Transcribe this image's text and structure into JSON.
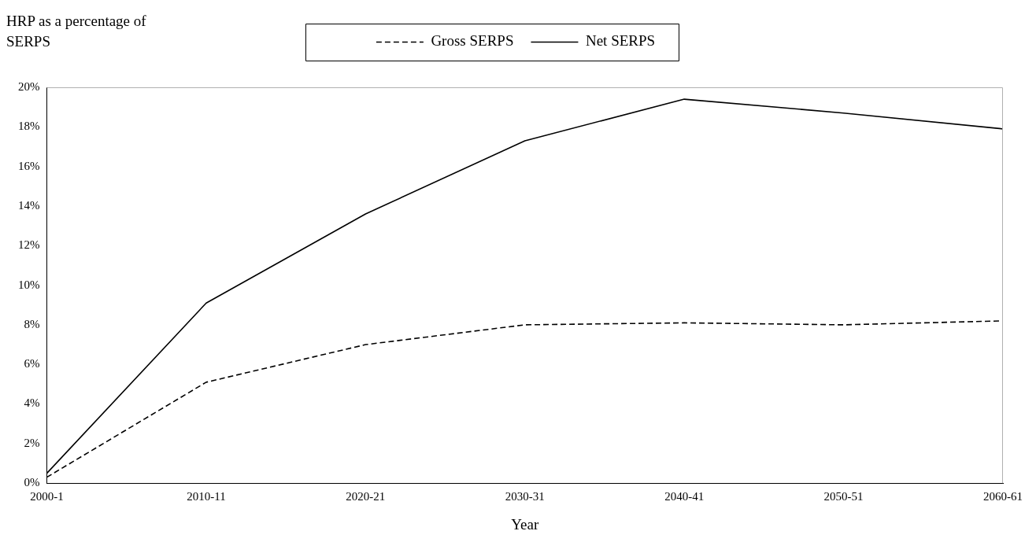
{
  "chart_data": {
    "type": "line",
    "ylabel": "HRP as a percentage of SERPS",
    "xlabel": "Year",
    "categories": [
      "2000-1",
      "2010-11",
      "2020-21",
      "2030-31",
      "2040-41",
      "2050-51",
      "2060-61"
    ],
    "series": [
      {
        "name": "Gross SERPS",
        "color": "#000000",
        "line_style": "dashed",
        "values": [
          0.3,
          5.1,
          7.0,
          8.0,
          8.1,
          8.0,
          8.2
        ]
      },
      {
        "name": "Net SERPS",
        "color": "#000000",
        "line_style": "solid",
        "values": [
          0.5,
          9.1,
          13.6,
          17.3,
          19.4,
          18.7,
          17.9
        ]
      }
    ],
    "ylim": [
      0,
      20
    ],
    "yticks": [
      {
        "value": 0,
        "label": "0%"
      },
      {
        "value": 2,
        "label": "2%"
      },
      {
        "value": 4,
        "label": "4%"
      },
      {
        "value": 6,
        "label": "6%"
      },
      {
        "value": 8,
        "label": "8%"
      },
      {
        "value": 10,
        "label": "10%"
      },
      {
        "value": 12,
        "label": "12%"
      },
      {
        "value": 14,
        "label": "14%"
      },
      {
        "value": 16,
        "label": "16%"
      },
      {
        "value": 18,
        "label": "18%"
      },
      {
        "value": 20,
        "label": "20%"
      }
    ],
    "legend": "top right",
    "marker": "none",
    "grid": false
  }
}
